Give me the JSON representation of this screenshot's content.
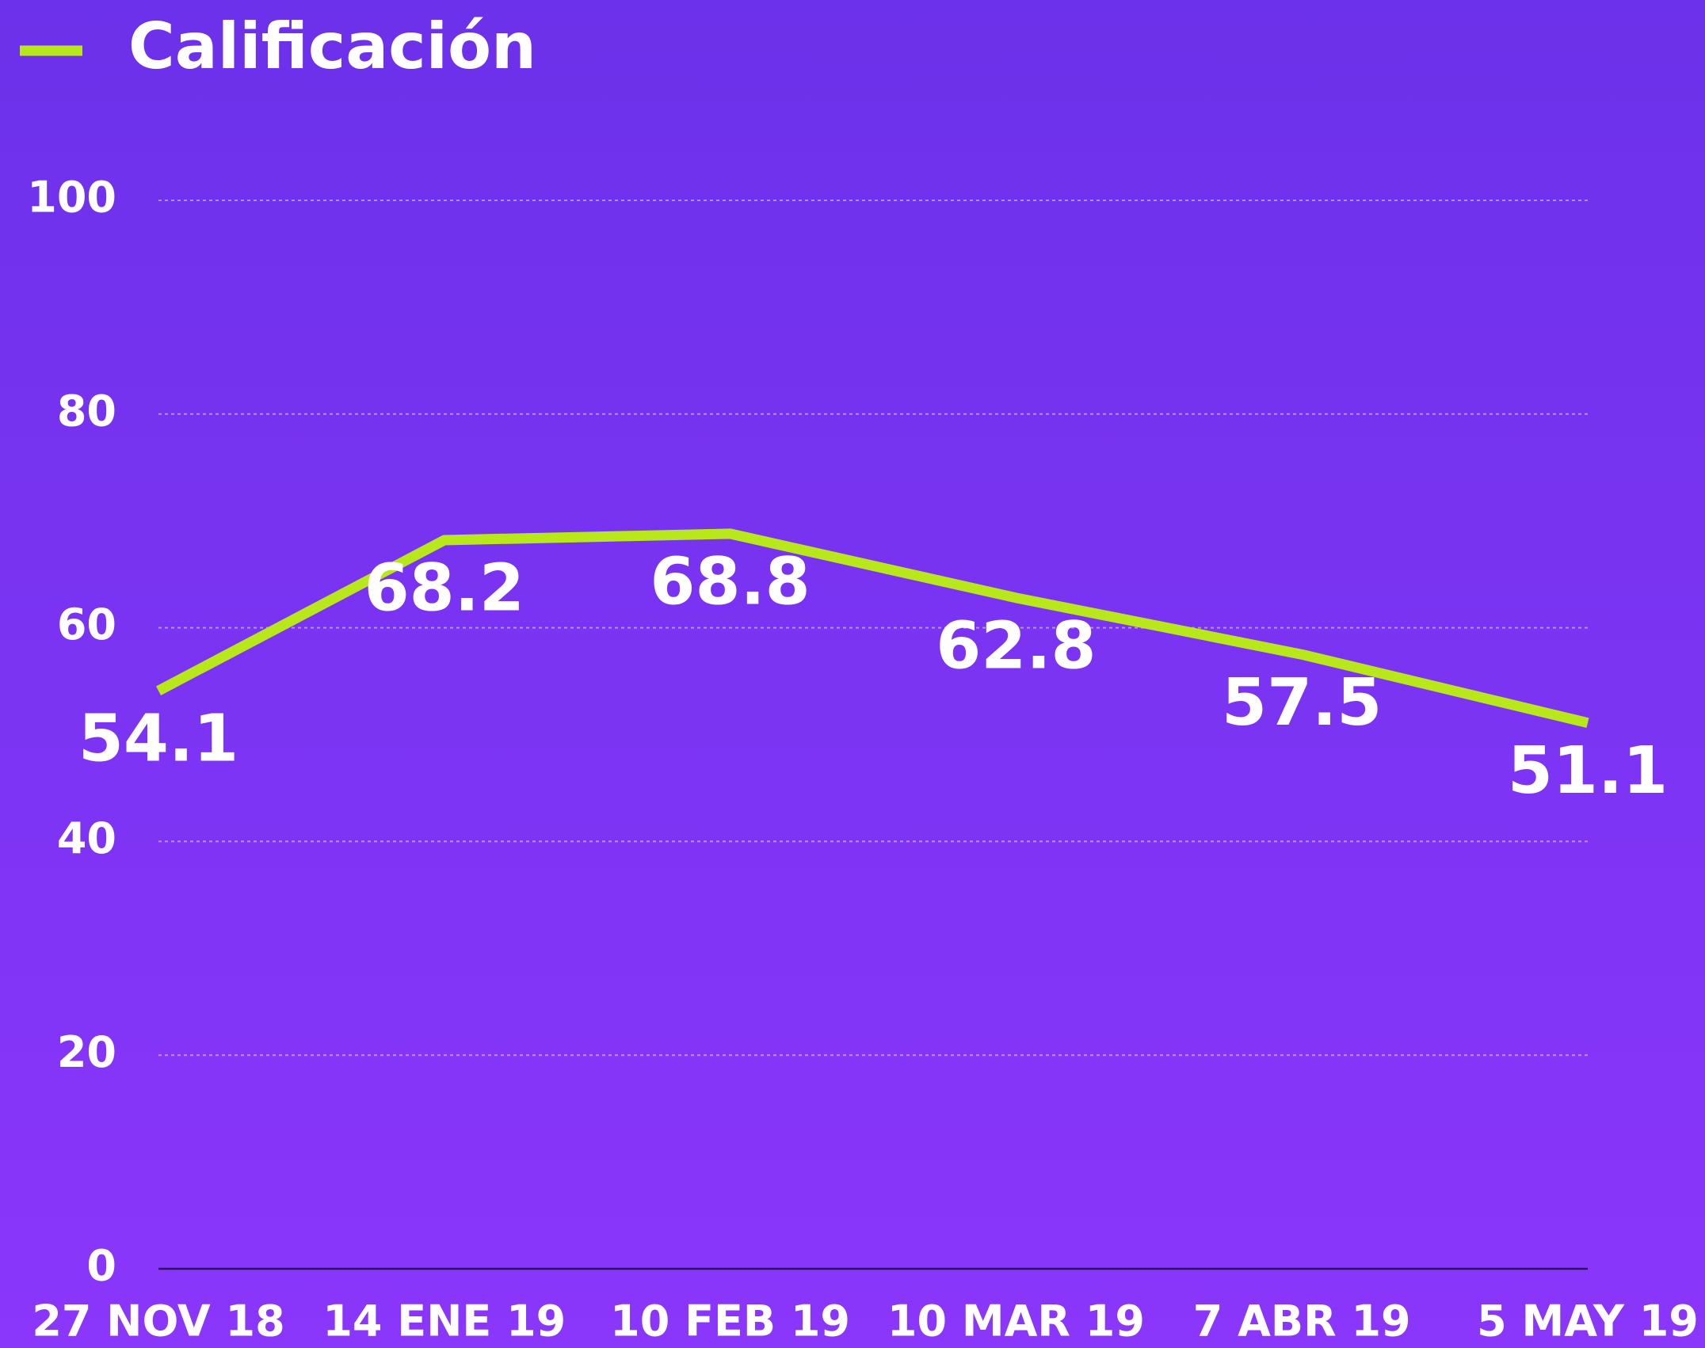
{
  "chart_data": {
    "type": "line",
    "categories": [
      "27 NOV 18",
      "14 ENE 19",
      "10 FEB 19",
      "10 MAR 19",
      "7 ABR 19",
      "5 MAY 19"
    ],
    "series": [
      {
        "name": "Calificación",
        "color": "#b8e81c",
        "values": [
          54.1,
          68.2,
          68.8,
          62.8,
          57.5,
          51.1
        ]
      }
    ],
    "ylim": [
      0,
      100
    ],
    "yticks": [
      0,
      20,
      40,
      60,
      80,
      100
    ],
    "grid": true,
    "legend": "top-left"
  }
}
